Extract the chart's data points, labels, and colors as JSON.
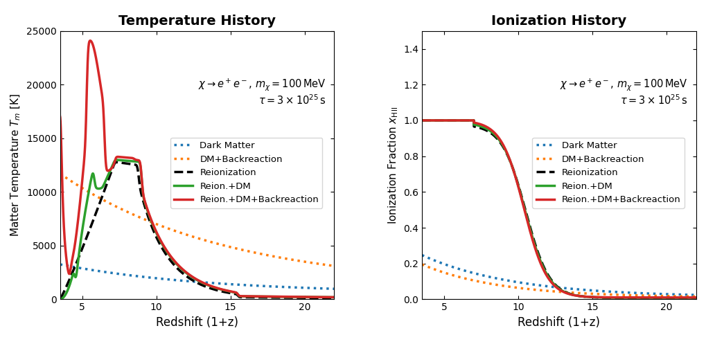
{
  "title_left": "Temperature History",
  "title_right": "Ionization History",
  "xlabel": "Redshift (1+z)",
  "ylabel_left": "Matter Temperature $T_m$ [K]",
  "ylabel_right": "Ionization Fraction $x_{\\mathrm{HII}}$",
  "xlim": [
    3.5,
    22
  ],
  "ylim_left": [
    0,
    25000
  ],
  "ylim_right": [
    0,
    1.5
  ],
  "yticks_left": [
    0,
    5000,
    10000,
    15000,
    20000,
    25000
  ],
  "yticks_right": [
    0.0,
    0.2,
    0.4,
    0.6,
    0.8,
    1.0,
    1.2,
    1.4
  ],
  "xticks": [
    5,
    10,
    15,
    20
  ],
  "legend_labels": [
    "Dark Matter",
    "DM+Backreaction",
    "Reionization",
    "Reion.+DM",
    "Reion.+DM+Backreaction"
  ],
  "color_dm": "#1f77b4",
  "color_dm_br": "#ff7f0e",
  "color_reion": "#000000",
  "color_reion_dm": "#2ca02c",
  "color_reion_dm_br": "#d62728",
  "lw": 2.0
}
